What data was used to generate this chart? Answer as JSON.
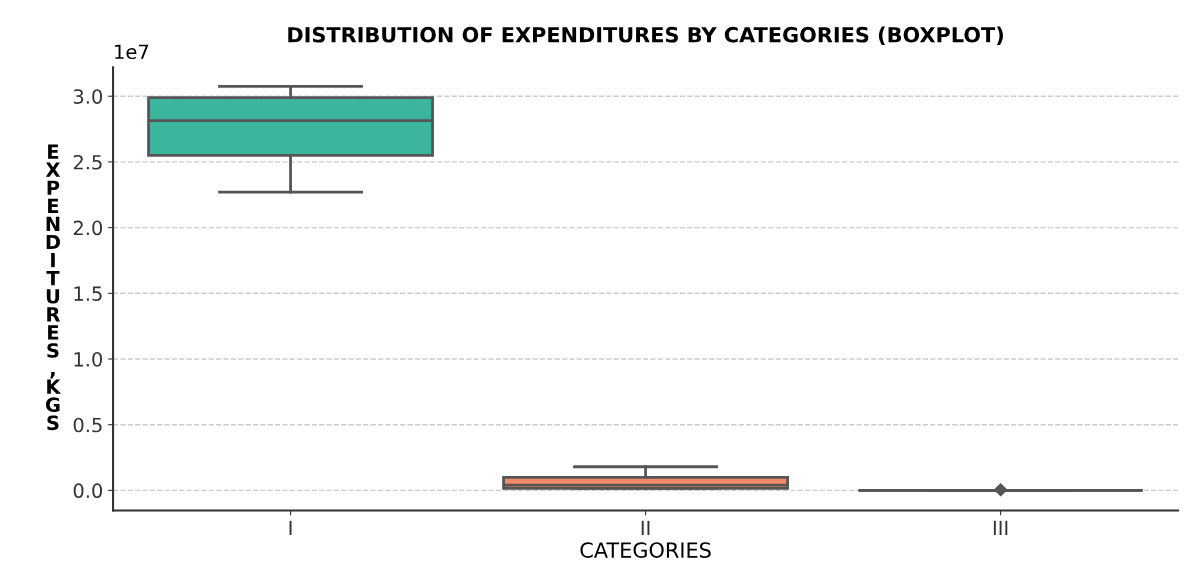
{
  "chart_data": {
    "type": "box",
    "title": "DISTRIBUTION OF EXPENDITURES BY CATEGORIES (BOXPLOT)",
    "xlabel": "CATEGORIES",
    "ylabel": "EXPENDITURES, KGS",
    "categories": [
      "I",
      "II",
      "III"
    ],
    "boxes": [
      {
        "low": 2.27,
        "q1": 2.55,
        "median": 2.815,
        "q3": 2.99,
        "high": 3.075
      },
      {
        "low": 0.015,
        "q1": 0.015,
        "median": 0.04,
        "q3": 0.1,
        "high": 0.18
      },
      {
        "low": 0,
        "q1": 0,
        "median": 0,
        "q3": 0,
        "high": 0,
        "outliers": [
          0.005
        ]
      }
    ],
    "colors": [
      "#3cb59e",
      "#f08a6a",
      "#555555"
    ],
    "ylim": [
      -0.153,
      3.22
    ],
    "yticks": [
      {
        "value": 0,
        "label": "0.0"
      },
      0.5,
      {
        "value": 1,
        "label": "1.0"
      },
      1.5,
      {
        "value": 2,
        "label": "2.0"
      },
      2.5,
      {
        "value": 3,
        "label": "3.0"
      }
    ],
    "annotations": [
      "1e7"
    ],
    "grid": "y"
  }
}
